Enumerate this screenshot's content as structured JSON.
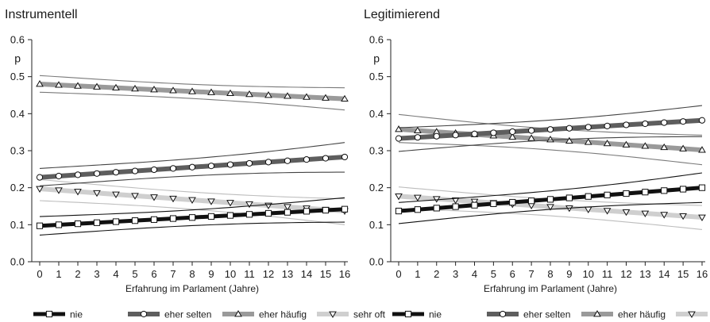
{
  "chart_data": [
    {
      "type": "line",
      "title": "Instrumentell",
      "xlabel": "Erfahrung im Parlament (Jahre)",
      "ylabel": "p",
      "ylim": [
        0.0,
        0.6
      ],
      "xlim": [
        0,
        16
      ],
      "x": [
        0,
        1,
        2,
        3,
        4,
        5,
        6,
        7,
        8,
        9,
        10,
        11,
        12,
        13,
        14,
        15,
        16
      ],
      "yticks": [
        "0.0",
        "0.1",
        "0.2",
        "0.3",
        "0.4",
        "0.5",
        "0.6"
      ],
      "xticks": [
        "0",
        "1",
        "2",
        "3",
        "4",
        "5",
        "6",
        "7",
        "8",
        "9",
        "10",
        "11",
        "12",
        "13",
        "14",
        "15",
        "16"
      ],
      "grid": false,
      "legend_position": "bottom",
      "series": [
        {
          "name": "nie",
          "style": "nie",
          "start": 0.097,
          "end": 0.142,
          "ci_start": [
            0.072,
            0.122
          ],
          "ci_end": [
            0.107,
            0.173
          ]
        },
        {
          "name": "eher selten",
          "style": "selten",
          "start": 0.228,
          "end": 0.283,
          "ci_start": [
            0.205,
            0.252
          ],
          "ci_end": [
            0.242,
            0.322
          ]
        },
        {
          "name": "eher häufig",
          "style": "haeufig",
          "start": 0.48,
          "end": 0.44,
          "ci_start": [
            0.458,
            0.503
          ],
          "ci_end": [
            0.41,
            0.47
          ]
        },
        {
          "name": "sehr oft",
          "style": "sehroft",
          "start": 0.197,
          "end": 0.137,
          "ci_start": [
            0.165,
            0.222
          ],
          "ci_end": [
            0.1,
            0.17
          ]
        }
      ]
    },
    {
      "type": "line",
      "title": "Legitimierend",
      "xlabel": "Erfahrung im Parlament (Jahre)",
      "ylabel": "p",
      "ylim": [
        0.0,
        0.6
      ],
      "xlim": [
        0,
        16
      ],
      "x": [
        0,
        1,
        2,
        3,
        4,
        5,
        6,
        7,
        8,
        9,
        10,
        11,
        12,
        13,
        14,
        15,
        16
      ],
      "yticks": [
        "0.0",
        "0.1",
        "0.2",
        "0.3",
        "0.4",
        "0.5",
        "0.6"
      ],
      "xticks": [
        "0",
        "1",
        "2",
        "3",
        "4",
        "5",
        "6",
        "7",
        "8",
        "9",
        "10",
        "11",
        "12",
        "13",
        "14",
        "15",
        "16"
      ],
      "grid": false,
      "legend_position": "bottom",
      "series": [
        {
          "name": "nie",
          "style": "nie",
          "start": 0.137,
          "end": 0.2,
          "ci_start": [
            0.103,
            0.16
          ],
          "ci_end": [
            0.16,
            0.24
          ]
        },
        {
          "name": "eher selten",
          "style": "selten",
          "start": 0.333,
          "end": 0.382,
          "ci_start": [
            0.298,
            0.362
          ],
          "ci_end": [
            0.338,
            0.422
          ]
        },
        {
          "name": "eher häufig",
          "style": "haeufig",
          "start": 0.358,
          "end": 0.302,
          "ci_start": [
            0.322,
            0.398
          ],
          "ci_end": [
            0.262,
            0.342
          ]
        },
        {
          "name": "sehr oft",
          "style": "sehroft",
          "start": 0.177,
          "end": 0.12,
          "ci_start": [
            0.143,
            0.202
          ],
          "ci_end": [
            0.087,
            0.152
          ]
        }
      ]
    }
  ],
  "styles": {
    "nie": {
      "line_color": "#111111",
      "ci_color": "#111111",
      "marker": "square"
    },
    "selten": {
      "line_color": "#5e5e5e",
      "ci_color": "#444444",
      "marker": "circle"
    },
    "haeufig": {
      "line_color": "#9a9a9a",
      "ci_color": "#7a7a7a",
      "marker": "triangle-up"
    },
    "sehroft": {
      "line_color": "#cfcfcf",
      "ci_color": "#bdbdbd",
      "marker": "triangle-down"
    }
  }
}
